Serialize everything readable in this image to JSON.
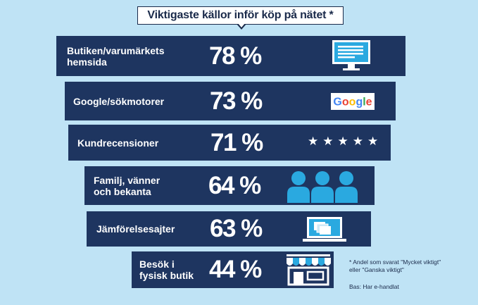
{
  "chart_data": {
    "type": "bar",
    "title": "Viktigaste källor inför köp på nätet *",
    "categories": [
      "Butiken/varumärkets\nhemsida",
      "Google/sökmotorer",
      "Kundrecensioner",
      "Familj, vänner\noch bekanta",
      "Jämförelsesajter",
      "Besök i\nfysisk butik"
    ],
    "values": [
      78,
      73,
      71,
      64,
      63,
      44
    ],
    "value_labels": [
      "78 %",
      "73 %",
      "71 %",
      "64 %",
      "63 %",
      "44 %"
    ],
    "icons": [
      "monitor-icon",
      "google-logo-icon",
      "stars-icon",
      "people-icon",
      "laptop-icon",
      "storefront-icon"
    ],
    "google_text": "Google",
    "stars_text": "★★★★★",
    "footnote": "* Andel som svarat \"Mycket viktigt\"\neller \"Ganska viktigt\"",
    "basis": "Bas: Har e-handlat"
  },
  "colors": {
    "background": "#bfe3f5",
    "bar": "#1e3560",
    "accent_blue": "#2aa9e0",
    "text_dark": "#1a2a4a"
  }
}
